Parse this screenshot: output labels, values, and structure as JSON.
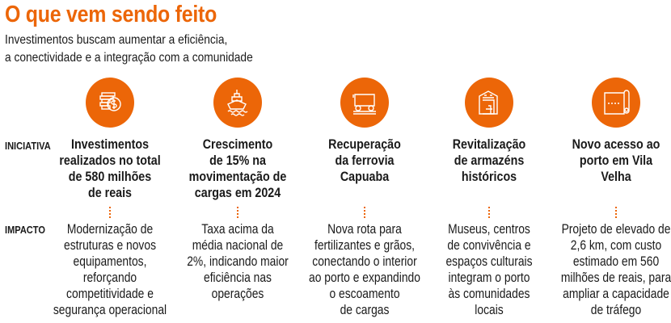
{
  "header": {
    "title": "O que vem sendo feito",
    "subtitle": [
      "Investimentos buscam aumentar a eficiência,",
      "a conectividade e a integração com a comunidade"
    ]
  },
  "row_labels": {
    "initiative": "INICIATIVA",
    "impact": "IMPACTO"
  },
  "accent_color": "#ec6608",
  "columns": [
    {
      "icon": "coins-dollar-icon",
      "initiative": [
        "Investimentos",
        "realizados no total",
        "de 580 milhões",
        "de reais"
      ],
      "impact": [
        "Modernização de",
        "estruturas e novos",
        "equipamentos,",
        "reforçando",
        "competitividade e",
        "segurança operacional"
      ]
    },
    {
      "icon": "ship-icon",
      "initiative": [
        "Crescimento",
        "de 15% na",
        "movimentação de",
        "cargas em 2024"
      ],
      "impact": [
        "Taxa acima da",
        "média nacional de",
        "2%, indicando maior",
        "eficiência nas",
        "operações"
      ]
    },
    {
      "icon": "rail-cart-icon",
      "initiative": [
        "Recuperação",
        "da ferrovia",
        "Capuaba"
      ],
      "impact": [
        "Nova rota para",
        "fertilizantes e grãos,",
        "conectando o interior",
        "ao porto e expandindo",
        "o escoamento",
        "de cargas"
      ]
    },
    {
      "icon": "warehouse-icon",
      "initiative": [
        "Revitalização",
        "de armazéns",
        "históricos"
      ],
      "impact": [
        "Museus, centros",
        "de convivência e",
        "espaços culturais",
        "integram o porto",
        "às comunidades",
        "locais"
      ]
    },
    {
      "icon": "road-map-icon",
      "initiative": [
        "Novo acesso ao",
        "porto em Vila",
        "Velha"
      ],
      "impact": [
        "Projeto de elevado de",
        "2,6 km, com custo",
        "estimado em 560",
        "milhões de reais, para",
        "ampliar a capacidade",
        "de tráfego"
      ]
    }
  ]
}
